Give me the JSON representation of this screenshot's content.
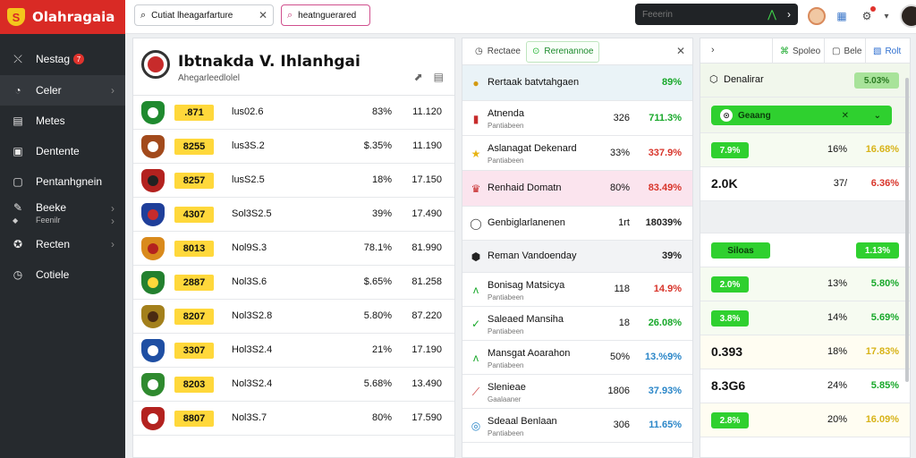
{
  "app": {
    "name": "Olahragaia",
    "logo_letter": "S"
  },
  "sidebar": {
    "items": [
      {
        "label": "Nestag",
        "badge": "7",
        "icon": "arrow-icon"
      },
      {
        "label": "Celer",
        "icon": "gauge-icon",
        "chevron": true
      },
      {
        "label": "Metes",
        "icon": "document-icon"
      },
      {
        "label": "Dentente",
        "icon": "tv-icon"
      },
      {
        "label": "Pentanhgnein",
        "icon": "screen-icon"
      },
      {
        "label": "Beeke",
        "sub": "Feenilr",
        "icon": "pin-icon",
        "chevron": true
      },
      {
        "label": "Recten",
        "icon": "globe-icon",
        "chevron": true
      },
      {
        "label": "Cotiele",
        "icon": "clock-icon"
      }
    ]
  },
  "topbar": {
    "search_text": "Cutiat lheagarfarture",
    "search_pink": "heatnguerared",
    "dark_search": "Feeerin"
  },
  "match": {
    "title": "Ibtnakda V. Ihlanhgai",
    "subtitle": "Ahegarleedlolel"
  },
  "left_rows": [
    {
      "badge": ".871",
      "code": "lus02.6",
      "pct": "83%",
      "val": "11.120",
      "c1": "#1f8a2f",
      "c2": "#fff"
    },
    {
      "badge": "8255",
      "code": "lus3S.2",
      "pct": "$.35%",
      "val": "11.190",
      "c1": "#a24a1c",
      "c2": "#fff"
    },
    {
      "badge": "8257",
      "code": "lusS2.5",
      "pct": "18%",
      "val": "17.150",
      "c1": "#b3221f",
      "c2": "#222"
    },
    {
      "badge": "4307",
      "code": "Sol3S2.5",
      "pct": "39%",
      "val": "17.490",
      "c1": "#1f3f9a",
      "c2": "#c72b2b"
    },
    {
      "badge": "8013",
      "code": "Nol9S.3",
      "pct": "78.1%",
      "val": "81.990",
      "c1": "#d98a1c",
      "c2": "#b3221f"
    },
    {
      "badge": "2887",
      "code": "Nol3S.6",
      "pct": "$.65%",
      "val": "81.258",
      "c1": "#23802f",
      "c2": "#ffd83b"
    },
    {
      "badge": "8207",
      "code": "Nol3S2.8",
      "pct": "5.80%",
      "val": "87.220",
      "c1": "#a3801c",
      "c2": "#4a2a12"
    },
    {
      "badge": "3307",
      "code": "Hol3S2.4",
      "pct": "21%",
      "val": "17.190",
      "c1": "#1f4fa3",
      "c2": "#fff"
    },
    {
      "badge": "8203",
      "code": "Nol3S2.4",
      "pct": "5.68%",
      "val": "13.490",
      "c1": "#2f8a2f",
      "c2": "#fff"
    },
    {
      "badge": "8807",
      "code": "Nol3S.7",
      "pct": "80%",
      "val": "17.590",
      "c1": "#b3221f",
      "c2": "#fff"
    }
  ],
  "mid": {
    "tabs": [
      {
        "label": "Rectaee",
        "icon": "history-icon"
      },
      {
        "label": "Rerenannoe",
        "icon": "check-icon"
      }
    ],
    "rows": [
      {
        "name": "Rertaak batvtahgaen",
        "sub": "",
        "num": "",
        "pct": "89%",
        "pct_color": "#18a82a",
        "icon": "coin-icon",
        "icon_color": "#d39a12",
        "bg": "#eaf3f7",
        "h": 40
      },
      {
        "name": "Atnenda",
        "sub": "Pantiabeen",
        "num": "326",
        "pct": "711.3%",
        "pct_color": "#18a82a",
        "icon": "flag-icon",
        "icon_color": "#c72b2b",
        "bg": "#fff",
        "h": 39
      },
      {
        "name": "Aslanagat Dekenard",
        "sub": "Pantiabeen",
        "num": "33%",
        "pct": "337.9%",
        "pct_color": "#d8342a",
        "icon": "star-icon",
        "icon_color": "#e8b414",
        "bg": "#fff",
        "h": 39
      },
      {
        "name": "Renhaid Domatn",
        "sub": "",
        "num": "80%",
        "pct": "83.49%",
        "pct_color": "#d8342a",
        "icon": "trophy-icon",
        "icon_color": "#c72b2b",
        "bg": "#fbe4ee",
        "h": 40
      },
      {
        "name": "Genbiglarlanenen",
        "sub": "",
        "num": "1rt",
        "pct": "18039%",
        "pct_color": "#222",
        "icon": "ring-icon",
        "icon_color": "#444",
        "bg": "#fff",
        "h": 38
      },
      {
        "name": "Reman Vandoenday",
        "sub": "",
        "num": "",
        "pct": "39%",
        "pct_color": "#222",
        "icon": "shield-icon",
        "icon_color": "#222",
        "bg": "#f2f3f5",
        "h": 36
      },
      {
        "name": "Bonisag Matsicya",
        "sub": "Pantiabeen",
        "num": "118",
        "pct": "14.9%",
        "pct_color": "#d8342a",
        "icon": "wing-icon",
        "icon_color": "#18a82a",
        "bg": "#fff",
        "h": 38
      },
      {
        "name": "Saleaed Mansiha",
        "sub": "Pantiabeen",
        "num": "18",
        "pct": "26.08%",
        "pct_color": "#18a82a",
        "icon": "leaf-icon",
        "icon_color": "#18a82a",
        "bg": "#fff",
        "h": 38
      },
      {
        "name": "Mansgat Aoarahon",
        "sub": "Pantiabeen",
        "num": "50%",
        "pct": "13.%9%",
        "pct_color": "#2a86c8",
        "icon": "wing-icon",
        "icon_color": "#18a82a",
        "bg": "#fff",
        "h": 38
      },
      {
        "name": "Slenieae",
        "sub": "Gaalaaner",
        "num": "1806",
        "pct": "37.93%",
        "pct_color": "#2a86c8",
        "icon": "slash-icon",
        "icon_color": "#c72b2b",
        "bg": "#fff",
        "h": 38
      },
      {
        "name": "Sdeaal Benlaan",
        "sub": "Pantiabeen",
        "num": "306",
        "pct": "11.65%",
        "pct_color": "#2a86c8",
        "icon": "ball-icon",
        "icon_color": "#2a86c8",
        "bg": "#fff",
        "h": 38
      }
    ]
  },
  "right": {
    "tabs": [
      {
        "label": "Spoleo",
        "icon": "tag-icon"
      },
      {
        "label": "Bele",
        "icon": "box-icon"
      },
      {
        "label": "Rolt",
        "icon": "edit-icon"
      }
    ],
    "header_label": "Denalirar",
    "header_pct": "5.03%",
    "rows": [
      {
        "kind": "pillwide",
        "text": "Geaang",
        "mid": "",
        "pct": "",
        "bg": "#f1f7ec",
        "h": 40
      },
      {
        "kind": "pill",
        "text": "7.9%",
        "mid": "16%",
        "pct": "16.68%",
        "pct_color": "#d8b318",
        "bg": "#f6fbf1",
        "h": 38
      },
      {
        "kind": "big",
        "text": "2.0K",
        "mid": "37/",
        "pct": "6.36%",
        "pct_color": "#d8342a",
        "bg": "#fff",
        "h": 38
      },
      {
        "kind": "blank",
        "text": "",
        "mid": "",
        "pct": "",
        "bg": "#eef0f2",
        "h": 36
      },
      {
        "kind": "pill2",
        "text": "Siloas",
        "mid": "",
        "pct": "1.13%",
        "pct_color": "#fff",
        "bg": "#fff",
        "h": 38
      },
      {
        "kind": "pill",
        "text": "2.0%",
        "mid": "13%",
        "pct": "5.80%",
        "pct_color": "#18a82a",
        "bg": "#f6fbf1",
        "h": 38
      },
      {
        "kind": "pill",
        "text": "3.8%",
        "mid": "14%",
        "pct": "5.69%",
        "pct_color": "#18a82a",
        "bg": "#f6fbf1",
        "h": 38
      },
      {
        "kind": "big",
        "text": "0.393",
        "mid": "18%",
        "pct": "17.83%",
        "pct_color": "#d8b318",
        "bg": "#fffdf2",
        "h": 38
      },
      {
        "kind": "big",
        "text": "8.3G6",
        "mid": "24%",
        "pct": "5.85%",
        "pct_color": "#18a82a",
        "bg": "#fff",
        "h": 38
      },
      {
        "kind": "pill",
        "text": "2.8%",
        "mid": "20%",
        "pct": "16.09%",
        "pct_color": "#d8b318",
        "bg": "#fffdf2",
        "h": 38
      }
    ]
  }
}
